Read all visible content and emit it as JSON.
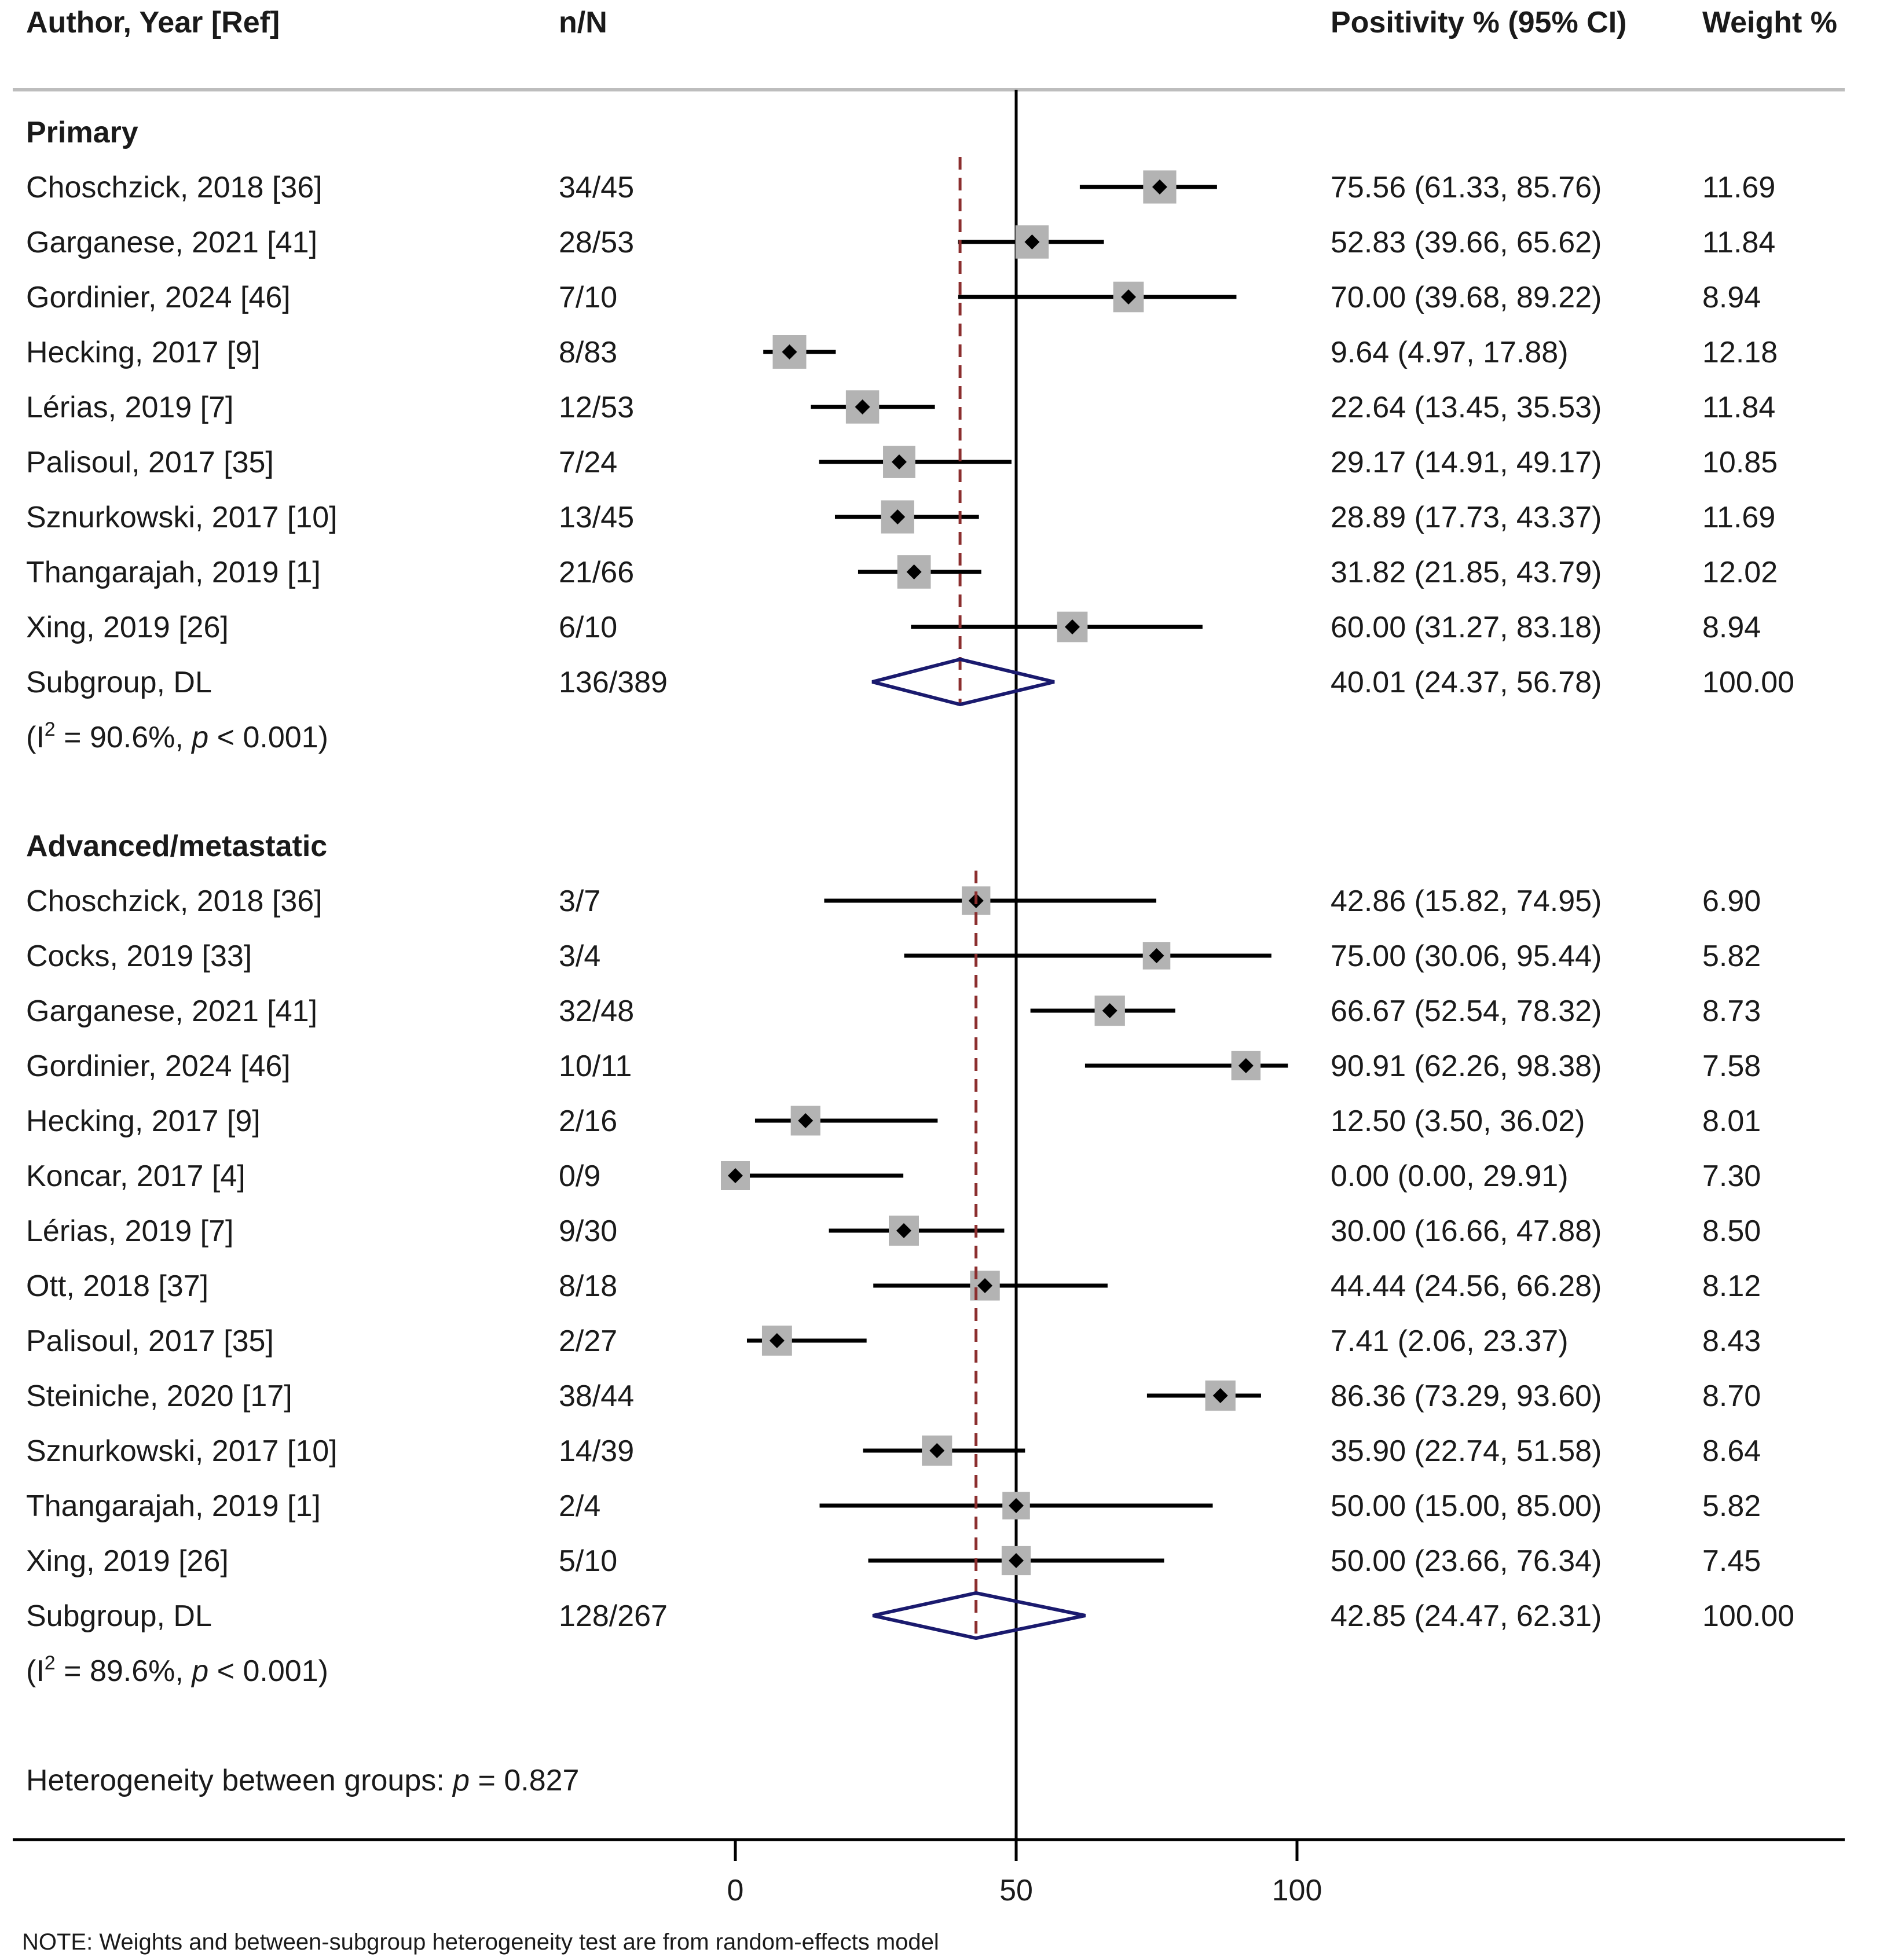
{
  "chart_data": {
    "type": "forest",
    "x_axis": {
      "min": 0,
      "max": 100,
      "ticks": [
        0,
        50,
        100
      ],
      "null_line": 50
    },
    "columns": {
      "study": "Author, Year [Ref]",
      "nN": "n/N",
      "estimate": "Positivity % (95% CI)",
      "weight": "Weight %"
    },
    "groups": [
      {
        "name": "Primary",
        "studies": [
          {
            "label": "Choschzick, 2018 [36]",
            "nN": "34/45",
            "est": 75.56,
            "lo": 61.33,
            "hi": 85.76,
            "ci_text": "75.56 (61.33, 85.76)",
            "weight": 11.69,
            "weight_text": "11.69"
          },
          {
            "label": "Garganese, 2021 [41]",
            "nN": "28/53",
            "est": 52.83,
            "lo": 39.66,
            "hi": 65.62,
            "ci_text": "52.83 (39.66, 65.62)",
            "weight": 11.84,
            "weight_text": "11.84"
          },
          {
            "label": "Gordinier, 2024 [46]",
            "nN": "7/10",
            "est": 70.0,
            "lo": 39.68,
            "hi": 89.22,
            "ci_text": "70.00 (39.68, 89.22)",
            "weight": 8.94,
            "weight_text": "8.94"
          },
          {
            "label": "Hecking, 2017 [9]",
            "nN": "8/83",
            "est": 9.64,
            "lo": 4.97,
            "hi": 17.88,
            "ci_text": "9.64 (4.97, 17.88)",
            "weight": 12.18,
            "weight_text": "12.18"
          },
          {
            "label": "Lérias, 2019 [7]",
            "nN": "12/53",
            "est": 22.64,
            "lo": 13.45,
            "hi": 35.53,
            "ci_text": "22.64 (13.45, 35.53)",
            "weight": 11.84,
            "weight_text": "11.84"
          },
          {
            "label": "Palisoul, 2017 [35]",
            "nN": "7/24",
            "est": 29.17,
            "lo": 14.91,
            "hi": 49.17,
            "ci_text": "29.17 (14.91, 49.17)",
            "weight": 10.85,
            "weight_text": "10.85"
          },
          {
            "label": "Sznurkowski, 2017 [10]",
            "nN": "13/45",
            "est": 28.89,
            "lo": 17.73,
            "hi": 43.37,
            "ci_text": "28.89 (17.73, 43.37)",
            "weight": 11.69,
            "weight_text": "11.69"
          },
          {
            "label": "Thangarajah, 2019 [1]",
            "nN": "21/66",
            "est": 31.82,
            "lo": 21.85,
            "hi": 43.79,
            "ci_text": "31.82 (21.85, 43.79)",
            "weight": 12.02,
            "weight_text": "12.02"
          },
          {
            "label": "Xing, 2019 [26]",
            "nN": "6/10",
            "est": 60.0,
            "lo": 31.27,
            "hi": 83.18,
            "ci_text": "60.00 (31.27, 83.18)",
            "weight": 8.94,
            "weight_text": "8.94"
          }
        ],
        "pooled": {
          "label": "Subgroup, DL",
          "nN": "136/389",
          "est": 40.01,
          "lo": 24.37,
          "hi": 56.78,
          "ci_text": "40.01 (24.37, 56.78)",
          "weight_text": "100.00"
        },
        "het": {
          "i2": "90.6%",
          "p": "0.001"
        }
      },
      {
        "name": "Advanced/metastatic",
        "studies": [
          {
            "label": "Choschzick, 2018 [36]",
            "nN": "3/7",
            "est": 42.86,
            "lo": 15.82,
            "hi": 74.95,
            "ci_text": "42.86 (15.82, 74.95)",
            "weight": 6.9,
            "weight_text": "6.90"
          },
          {
            "label": "Cocks, 2019 [33]",
            "nN": "3/4",
            "est": 75.0,
            "lo": 30.06,
            "hi": 95.44,
            "ci_text": "75.00 (30.06, 95.44)",
            "weight": 5.82,
            "weight_text": "5.82"
          },
          {
            "label": "Garganese, 2021 [41]",
            "nN": "32/48",
            "est": 66.67,
            "lo": 52.54,
            "hi": 78.32,
            "ci_text": "66.67 (52.54, 78.32)",
            "weight": 8.73,
            "weight_text": "8.73"
          },
          {
            "label": "Gordinier, 2024 [46]",
            "nN": "10/11",
            "est": 90.91,
            "lo": 62.26,
            "hi": 98.38,
            "ci_text": "90.91 (62.26, 98.38)",
            "weight": 7.58,
            "weight_text": "7.58"
          },
          {
            "label": "Hecking, 2017 [9]",
            "nN": "2/16",
            "est": 12.5,
            "lo": 3.5,
            "hi": 36.02,
            "ci_text": "12.50 (3.50, 36.02)",
            "weight": 8.01,
            "weight_text": "8.01"
          },
          {
            "label": "Koncar, 2017 [4]",
            "nN": "0/9",
            "est": 0.0,
            "lo": 0.0,
            "hi": 29.91,
            "ci_text": "0.00 (0.00, 29.91)",
            "weight": 7.3,
            "weight_text": "7.30"
          },
          {
            "label": "Lérias, 2019 [7]",
            "nN": "9/30",
            "est": 30.0,
            "lo": 16.66,
            "hi": 47.88,
            "ci_text": "30.00 (16.66, 47.88)",
            "weight": 8.5,
            "weight_text": "8.50"
          },
          {
            "label": "Ott, 2018 [37]",
            "nN": "8/18",
            "est": 44.44,
            "lo": 24.56,
            "hi": 66.28,
            "ci_text": "44.44 (24.56, 66.28)",
            "weight": 8.12,
            "weight_text": "8.12"
          },
          {
            "label": "Palisoul, 2017 [35]",
            "nN": "2/27",
            "est": 7.41,
            "lo": 2.06,
            "hi": 23.37,
            "ci_text": "7.41 (2.06, 23.37)",
            "weight": 8.43,
            "weight_text": "8.43"
          },
          {
            "label": "Steiniche, 2020 [17]",
            "nN": "38/44",
            "est": 86.36,
            "lo": 73.29,
            "hi": 93.6,
            "ci_text": "86.36 (73.29, 93.60)",
            "weight": 8.7,
            "weight_text": "8.70"
          },
          {
            "label": "Sznurkowski, 2017 [10]",
            "nN": "14/39",
            "est": 35.9,
            "lo": 22.74,
            "hi": 51.58,
            "ci_text": "35.90 (22.74, 51.58)",
            "weight": 8.64,
            "weight_text": "8.64"
          },
          {
            "label": "Thangarajah, 2019 [1]",
            "nN": "2/4",
            "est": 50.0,
            "lo": 15.0,
            "hi": 85.0,
            "ci_text": "50.00 (15.00, 85.00)",
            "weight": 5.82,
            "weight_text": "5.82"
          },
          {
            "label": "Xing, 2019 [26]",
            "nN": "5/10",
            "est": 50.0,
            "lo": 23.66,
            "hi": 76.34,
            "ci_text": "50.00 (23.66, 76.34)",
            "weight": 7.45,
            "weight_text": "7.45"
          }
        ],
        "pooled": {
          "label": "Subgroup, DL",
          "nN": "128/267",
          "est": 42.85,
          "lo": 24.47,
          "hi": 62.31,
          "ci_text": "42.85 (24.47, 62.31)",
          "weight_text": "100.00"
        },
        "het": {
          "i2": "89.6%",
          "p": "0.001"
        }
      }
    ],
    "between_groups": {
      "label": "Heterogeneity between groups: ",
      "p_symbol": "p",
      "p_text": " = 0.827"
    },
    "note": "NOTE: Weights and between-subgroup heterogeneity test are from random-effects model",
    "colors": {
      "text": "#1a1a1a",
      "ci_line": "#000000",
      "weight_box": "#b3b3b3",
      "point": "#000000",
      "pooled_diamond": "#1a1a6e",
      "pooled_dash": "#8b2e2e",
      "divider": "#bdbdbd",
      "axis": "#000000"
    }
  }
}
